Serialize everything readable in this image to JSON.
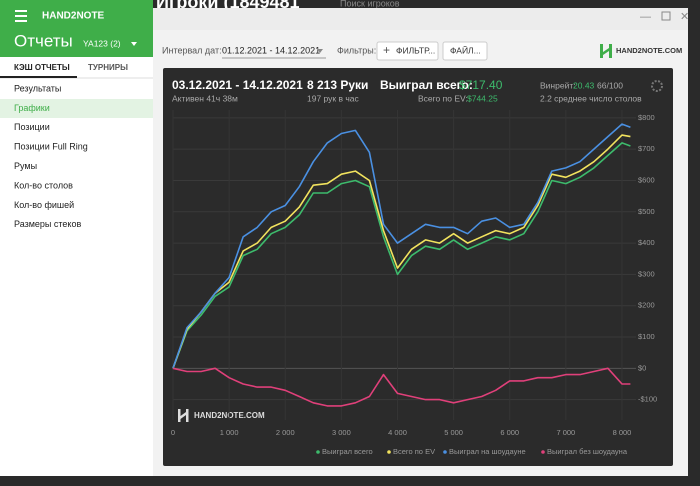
{
  "window": {
    "app_name": "HAND2NOTE",
    "background_title": "Игроки (1849481",
    "background_search": "Поиск игроков"
  },
  "sidebar": {
    "title": "Отчеты",
    "account": "YA123 (2)",
    "tabs": [
      "КЭШ ОТЧЕТЫ",
      "ТУРНИРЫ"
    ],
    "items": [
      "Результаты",
      "Графики",
      "Позиции",
      "Позиции Full Ring",
      "Румы",
      "Кол-во столов",
      "Кол-во фишей",
      "Размеры стеков"
    ]
  },
  "toolbar": {
    "date_label": "Интервал дат:",
    "date_range": "01.12.2021 - 14.12.2021",
    "filters_label": "Фильтры:",
    "filter_button": "ФИЛЬТР...",
    "file_button": "ФАЙЛ...",
    "logo": "HAND2NOTE.COM"
  },
  "stats": {
    "period": "03.12.2021 - 14.12.2021",
    "active": "Активен 41ч 38м",
    "hands": "8 213 Руки",
    "hands_per_hour": "197 рук в час",
    "won_label": "Выиграл всего:",
    "won_value": "$717.40",
    "ev_label": "Всего по EV:",
    "ev_value": "$744.25",
    "winrate_label": "Винрейт:",
    "winrate_value": "20.43",
    "winrate_unit": "66/100",
    "tables": "2.2 среднее число столов"
  },
  "chart_data": {
    "type": "line",
    "watermark": "HAND2NOTE.COM",
    "x": [
      0,
      250,
      500,
      750,
      1000,
      1250,
      1500,
      1750,
      2000,
      2250,
      2500,
      2750,
      3000,
      3250,
      3500,
      3750,
      4000,
      4250,
      4500,
      4750,
      5000,
      5250,
      5500,
      5750,
      6000,
      6250,
      6500,
      6750,
      7000,
      7250,
      7500,
      7750,
      8000,
      8150
    ],
    "series": [
      {
        "name": "Выиграл всего",
        "color": "#3dbb6c",
        "values": [
          0,
          120,
          170,
          230,
          260,
          360,
          380,
          430,
          450,
          490,
          560,
          560,
          590,
          600,
          580,
          420,
          300,
          360,
          390,
          380,
          410,
          380,
          400,
          420,
          410,
          430,
          500,
          600,
          590,
          610,
          640,
          680,
          720,
          710
        ]
      },
      {
        "name": "Всего по EV",
        "color": "#f2e35e",
        "values": [
          0,
          125,
          180,
          240,
          275,
          375,
          400,
          450,
          470,
          515,
          585,
          590,
          620,
          630,
          600,
          440,
          320,
          380,
          410,
          400,
          430,
          400,
          420,
          440,
          430,
          450,
          520,
          620,
          610,
          630,
          660,
          700,
          745,
          740
        ]
      },
      {
        "name": "Выиграл на шоудауне",
        "color": "#4a90e2",
        "values": [
          0,
          130,
          180,
          240,
          290,
          420,
          450,
          500,
          520,
          580,
          660,
          720,
          750,
          760,
          690,
          460,
          400,
          430,
          460,
          450,
          450,
          430,
          470,
          480,
          450,
          460,
          530,
          630,
          640,
          660,
          700,
          740,
          780,
          770
        ]
      },
      {
        "name": "Выиграл без шоудауна",
        "color": "#e0407a",
        "values": [
          0,
          -10,
          -10,
          0,
          -30,
          -50,
          -60,
          -60,
          -70,
          -90,
          -110,
          -120,
          -120,
          -110,
          -90,
          -20,
          -80,
          -90,
          -100,
          -100,
          -110,
          -100,
          -90,
          -70,
          -40,
          -40,
          -30,
          -30,
          -20,
          -20,
          -10,
          0,
          -50,
          -50
        ]
      }
    ],
    "xlim": [
      0,
      8250
    ],
    "ylim": [
      -165,
      825
    ],
    "xticks": [
      0,
      {
        "value": 1000,
        "label": "1 000"
      },
      {
        "value": 2000,
        "label": "2 000"
      },
      {
        "value": 3000,
        "label": "3 000"
      },
      {
        "value": 4000,
        "label": "4 000"
      },
      {
        "value": 5000,
        "label": "5 000"
      },
      {
        "value": 6000,
        "label": "6 000"
      },
      {
        "value": 7000,
        "label": "7 000"
      },
      {
        "value": 8000,
        "label": "8 000"
      }
    ],
    "yticks": [
      {
        "value": -100,
        "label": "-$100"
      },
      {
        "value": 0,
        "label": "$0"
      },
      {
        "value": 100,
        "label": "$100"
      },
      {
        "value": 200,
        "label": "$200"
      },
      {
        "value": 300,
        "label": "$300"
      },
      {
        "value": 400,
        "label": "$400"
      },
      {
        "value": 500,
        "label": "$500"
      },
      {
        "value": 600,
        "label": "$600"
      },
      {
        "value": 700,
        "label": "$700"
      },
      {
        "value": 800,
        "label": "$800"
      }
    ],
    "grid": true,
    "legend": "bottom"
  }
}
